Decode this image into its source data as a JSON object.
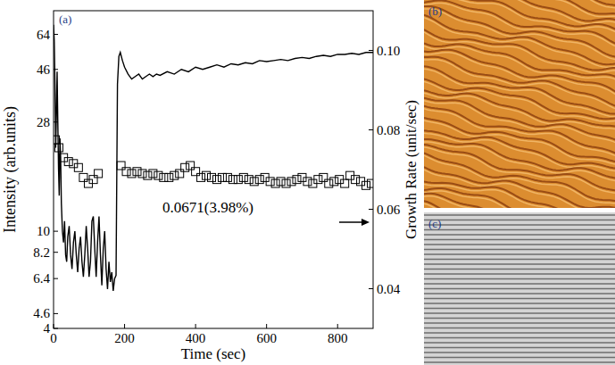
{
  "panel_labels": [
    "(a)",
    "(b)",
    "(c)"
  ],
  "chart_data": {
    "type": "line",
    "xlabel": "Time (sec)",
    "ylabel": "Intensity (arb.units)",
    "y2label": "Growth Rate (unit/sec)",
    "log": "y",
    "xlim": [
      0,
      900
    ],
    "xticks": [
      0,
      200,
      400,
      600,
      800
    ],
    "ylim": [
      4,
      80
    ],
    "yticks": [
      4,
      4.6,
      6.4,
      8.2,
      10,
      28,
      46,
      64
    ],
    "y2lim": [
      0.03,
      0.11
    ],
    "y2ticks": [
      0.04,
      0.06,
      0.08,
      {
        "value": 0.1,
        "label": "0.10"
      }
    ],
    "annotations": [
      {
        "text": "0.0671(3.98%)"
      }
    ],
    "series": [
      {
        "type": "line",
        "color": "#000000",
        "line_style": "solid",
        "x": [
          0,
          2,
          4,
          6,
          8,
          10,
          12,
          14,
          16,
          18,
          20,
          22,
          25,
          28,
          31,
          34,
          37,
          40,
          44,
          48,
          52,
          56,
          60,
          64,
          68,
          72,
          76,
          80,
          84,
          88,
          92,
          96,
          100,
          104,
          108,
          112,
          116,
          120,
          124,
          128,
          132,
          136,
          140,
          144,
          148,
          152,
          156,
          160,
          164,
          168,
          172,
          176,
          180,
          184,
          188,
          194,
          200,
          210,
          220,
          230,
          240,
          250,
          260,
          270,
          280,
          290,
          300,
          320,
          340,
          360,
          380,
          400,
          420,
          440,
          460,
          480,
          500,
          520,
          540,
          560,
          580,
          600,
          620,
          640,
          660,
          680,
          700,
          720,
          740,
          760,
          780,
          800,
          820,
          840,
          860,
          880,
          900
        ],
        "values": [
          70,
          60,
          40,
          22,
          30,
          45,
          28,
          18,
          14,
          24,
          20,
          13,
          10,
          9,
          11,
          8,
          7.5,
          9.5,
          10.5,
          8,
          7,
          9,
          10,
          8,
          6.8,
          8.5,
          9.5,
          7.5,
          6.5,
          8,
          10.5,
          8.5,
          6.5,
          7.5,
          11,
          11.5,
          8.5,
          6.5,
          9,
          11.5,
          8,
          6,
          8.5,
          10,
          7,
          5.8,
          7.5,
          6.2,
          6.8,
          5.7,
          6.4,
          6.6,
          40,
          52,
          54,
          50,
          47,
          44,
          42,
          43,
          44,
          42,
          43,
          44,
          43,
          44,
          43.5,
          45,
          44,
          46,
          45,
          47,
          46,
          47,
          48,
          47,
          48.5,
          48,
          49,
          48.5,
          50,
          49.5,
          50,
          50.5,
          50,
          51,
          51.5,
          51,
          52,
          52.5,
          52,
          53,
          53,
          53.5,
          53,
          54,
          54
        ]
      },
      {
        "type": "scatter",
        "axis": "y2",
        "marker": "square",
        "color": "#000000",
        "x": [
          5,
          15,
          28,
          42,
          56,
          70,
          84,
          98,
          112,
          126,
          190,
          205,
          220,
          235,
          250,
          265,
          280,
          295,
          310,
          325,
          340,
          355,
          370,
          385,
          400,
          415,
          430,
          445,
          460,
          475,
          490,
          505,
          520,
          535,
          550,
          565,
          580,
          595,
          610,
          625,
          640,
          655,
          670,
          685,
          700,
          715,
          730,
          745,
          760,
          775,
          790,
          805,
          820,
          835,
          850,
          865,
          880,
          895
        ],
        "values": [
          0.0775,
          0.0755,
          0.073,
          0.072,
          0.0715,
          0.0705,
          0.068,
          0.0665,
          0.0675,
          0.069,
          0.071,
          0.0695,
          0.069,
          0.0695,
          0.069,
          0.0685,
          0.069,
          0.0685,
          0.068,
          0.068,
          0.0685,
          0.069,
          0.0705,
          0.071,
          0.0695,
          0.068,
          0.0685,
          0.068,
          0.0675,
          0.068,
          0.068,
          0.0675,
          0.0675,
          0.068,
          0.0675,
          0.067,
          0.0675,
          0.068,
          0.067,
          0.0665,
          0.067,
          0.0665,
          0.067,
          0.0675,
          0.068,
          0.067,
          0.0665,
          0.0675,
          0.068,
          0.0665,
          0.067,
          0.0675,
          0.0665,
          0.0685,
          0.0675,
          0.067,
          0.066,
          0.0665
        ]
      }
    ]
  }
}
